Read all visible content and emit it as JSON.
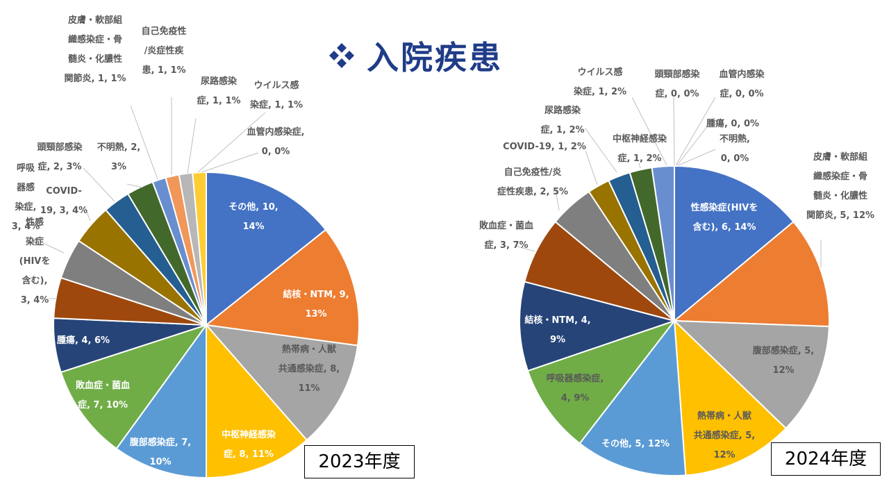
{
  "title": "入院疾患",
  "icon": "diamond-cluster-icon",
  "colors": {
    "blue": "#4472C4",
    "orange": "#ED7D31",
    "gray": "#A5A5A5",
    "gold": "#FFC000",
    "lightblue": "#5B9BD5",
    "green": "#70AD47",
    "navy": "#264478",
    "brown": "#9E480E",
    "darkgray": "#636363",
    "olive": "#997300",
    "steel": "#255E91",
    "darkgreen": "#43682B",
    "periwinkle": "#698ED0",
    "salmon": "#F1975A",
    "silver": "#B7B7B7",
    "yellow": "#FFCD33"
  },
  "chart_data": [
    {
      "type": "pie",
      "title": "2023年度",
      "slices": [
        {
          "label": "その他",
          "value": 10,
          "percent": "14%",
          "color": "#4472C4",
          "text": [
            "その他, 10,",
            "14%"
          ]
        },
        {
          "label": "結核・NTM",
          "value": 9,
          "percent": "13%",
          "color": "#ED7D31",
          "text": [
            "結核・NTM, 9,",
            "13%"
          ]
        },
        {
          "label": "熱帯病・人獣共通感染症",
          "value": 8,
          "percent": "11%",
          "color": "#A5A5A5",
          "text": [
            "熱帯病・人獣",
            "共通感染症, 8,",
            "11%"
          ]
        },
        {
          "label": "中枢神経感染症",
          "value": 8,
          "percent": "11%",
          "color": "#FFC000",
          "text": [
            "中枢神経感染",
            "症, 8, 11%"
          ]
        },
        {
          "label": "腹部感染症",
          "value": 7,
          "percent": "10%",
          "color": "#5B9BD5",
          "text": [
            "腹部感染症, 7,",
            "10%"
          ]
        },
        {
          "label": "敗血症・菌血症",
          "value": 7,
          "percent": "10%",
          "color": "#70AD47",
          "text": [
            "敗血症・菌血",
            "症, 7, 10%"
          ]
        },
        {
          "label": "腫瘍",
          "value": 4,
          "percent": "6%",
          "color": "#264478",
          "text": [
            "腫瘍, 4, 6%"
          ]
        },
        {
          "label": "性感染症(HIVを含む)",
          "value": 3,
          "percent": "4%",
          "color": "#9E480E",
          "text": [
            "性感",
            "染症",
            "(HIVを",
            "含む),",
            "3, 4%"
          ]
        },
        {
          "label": "呼吸器感染症",
          "value": 3,
          "percent": "4%",
          "color": "#7F7F7F",
          "text": [
            "呼吸",
            "器感",
            "染症,",
            "3, 4%"
          ]
        },
        {
          "label": "COVID-19",
          "value": 3,
          "percent": "4%",
          "color": "#997300",
          "text": [
            "COVID-",
            "19, 3, 4%"
          ]
        },
        {
          "label": "頭頸部感染症",
          "value": 2,
          "percent": "3%",
          "color": "#255E91",
          "text": [
            "頭頸部感染",
            "症, 2, 3%"
          ]
        },
        {
          "label": "不明熱",
          "value": 2,
          "percent": "3%",
          "color": "#43682B",
          "text": [
            "不明熱, 2,",
            "3%"
          ]
        },
        {
          "label": "皮膚・軟部組織感染症・骨髄炎・化膿性関節炎",
          "value": 1,
          "percent": "1%",
          "color": "#698ED0",
          "text": [
            "皮膚・軟部組",
            "織感染症・骨",
            "髄炎・化膿性",
            "関節炎, 1, 1%"
          ]
        },
        {
          "label": "自己免疫性/炎症性疾患",
          "value": 1,
          "percent": "1%",
          "color": "#F1975A",
          "text": [
            "自己免疫性",
            "/炎症性疾",
            "患, 1, 1%"
          ]
        },
        {
          "label": "尿路感染症",
          "value": 1,
          "percent": "1%",
          "color": "#B7B7B7",
          "text": [
            "尿路感染",
            "症, 1, 1%"
          ]
        },
        {
          "label": "ウイルス感染症",
          "value": 1,
          "percent": "1%",
          "color": "#FFCD33",
          "text": [
            "ウイルス感",
            "染症, 1, 1%"
          ]
        },
        {
          "label": "血管内感染症",
          "value": 0,
          "percent": "0%",
          "color": "#4472C4",
          "text": [
            "血管内感染症,",
            "0, 0%"
          ]
        }
      ]
    },
    {
      "type": "pie",
      "title": "2024年度",
      "slices": [
        {
          "label": "性感染症(HIVを含む)",
          "value": 6,
          "percent": "14%",
          "color": "#4472C4",
          "text": [
            "性感染症(HIVを",
            "含む), 6, 14%"
          ]
        },
        {
          "label": "皮膚・軟部組織感染症・骨髄炎・化膿性関節炎",
          "value": 5,
          "percent": "12%",
          "color": "#ED7D31",
          "text": [
            "皮膚・軟部組",
            "織感染症・骨",
            "髄炎・化膿性",
            "関節炎, 5, 12%"
          ]
        },
        {
          "label": "腹部感染症",
          "value": 5,
          "percent": "12%",
          "color": "#A5A5A5",
          "text": [
            "腹部感染症, 5,",
            "12%"
          ]
        },
        {
          "label": "熱帯病・人獣共通感染症",
          "value": 5,
          "percent": "12%",
          "color": "#FFC000",
          "text": [
            "熱帯病・人獣",
            "共通感染症, 5,",
            "12%"
          ]
        },
        {
          "label": "その他",
          "value": 5,
          "percent": "12%",
          "color": "#5B9BD5",
          "text": [
            "その他, 5, 12%"
          ]
        },
        {
          "label": "呼吸器感染症",
          "value": 4,
          "percent": "9%",
          "color": "#70AD47",
          "text": [
            "呼吸器感染症,",
            "4, 9%"
          ]
        },
        {
          "label": "結核・NTM",
          "value": 4,
          "percent": "9%",
          "color": "#264478",
          "text": [
            "結核・NTM, 4,",
            "9%"
          ]
        },
        {
          "label": "敗血症・菌血症",
          "value": 3,
          "percent": "7%",
          "color": "#9E480E",
          "text": [
            "敗血症・菌血",
            "症, 3, 7%"
          ]
        },
        {
          "label": "自己免疫性/炎症性疾患",
          "value": 2,
          "percent": "5%",
          "color": "#7F7F7F",
          "text": [
            "自己免疫性/炎",
            "症性疾患, 2, 5%"
          ]
        },
        {
          "label": "COVID-19",
          "value": 1,
          "percent": "2%",
          "color": "#997300",
          "text": [
            "COVID-19, 1, 2%"
          ]
        },
        {
          "label": "尿路感染症",
          "value": 1,
          "percent": "2%",
          "color": "#255E91",
          "text": [
            "尿路感染",
            "症, 1, 2%"
          ]
        },
        {
          "label": "中枢神経感染症",
          "value": 1,
          "percent": "2%",
          "color": "#43682B",
          "text": [
            "中枢神経感染",
            "症, 1, 2%"
          ]
        },
        {
          "label": "ウイルス感染症",
          "value": 1,
          "percent": "2%",
          "color": "#698ED0",
          "text": [
            "ウイルス感",
            "染症, 1, 2%"
          ]
        },
        {
          "label": "頭頸部感染症",
          "value": 0,
          "percent": "0%",
          "color": "#ED7D31",
          "text": [
            "頭頸部感染",
            "症, 0, 0%"
          ]
        },
        {
          "label": "血管内感染症",
          "value": 0,
          "percent": "0%",
          "color": "#A5A5A5",
          "text": [
            "血管内感染",
            "症, 0, 0%"
          ]
        },
        {
          "label": "腫瘍",
          "value": 0,
          "percent": "0%",
          "color": "#FFC000",
          "text": [
            "腫瘍, 0, 0%"
          ]
        },
        {
          "label": "不明熱",
          "value": 0,
          "percent": "0%",
          "color": "#5B9BD5",
          "text": [
            "不明熱,",
            "0, 0%"
          ]
        }
      ]
    }
  ]
}
